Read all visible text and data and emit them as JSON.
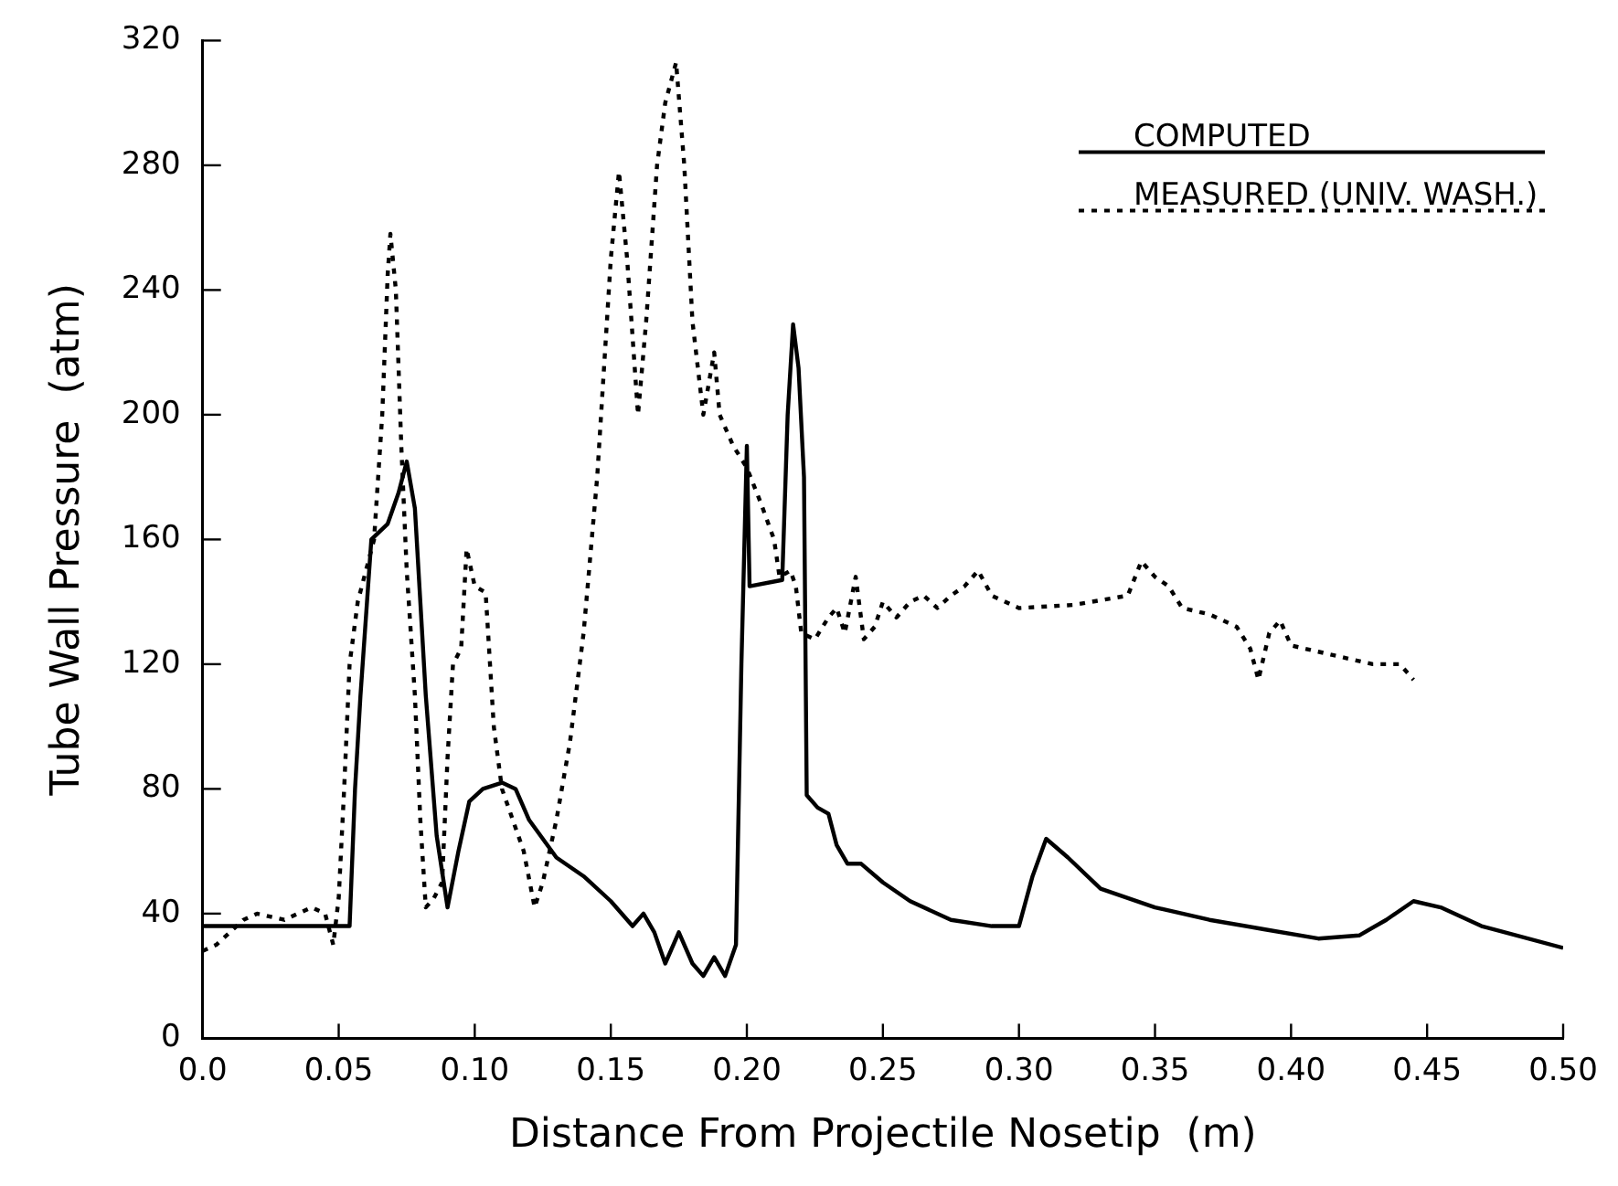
{
  "chart_data": {
    "type": "line",
    "xlabel": "Distance From Projectile Nosetip  (m)",
    "ylabel": "Tube Wall Pressure  (atm)",
    "xlim": [
      0,
      0.5
    ],
    "ylim": [
      0,
      320
    ],
    "xticks": [
      {
        "value": 0,
        "label": "0.0"
      },
      0.05,
      {
        "value": 0.1,
        "label": "0.10"
      },
      0.15,
      {
        "value": 0.2,
        "label": "0.20"
      },
      0.25,
      {
        "value": 0.3,
        "label": "0.30"
      },
      0.35,
      {
        "value": 0.4,
        "label": "0.40"
      },
      0.45,
      {
        "value": 0.5,
        "label": "0.50"
      }
    ],
    "yticks": [
      0,
      40,
      80,
      120,
      160,
      200,
      240,
      280,
      320
    ],
    "grid": false,
    "legend": "top right",
    "marker": "none",
    "series": [
      {
        "name": "COMPUTED",
        "color": "#000000",
        "line_style": "solid",
        "x": [
          0,
          0.054,
          0.056,
          0.058,
          0.062,
          0.068,
          0.072,
          0.075,
          0.078,
          0.082,
          0.086,
          0.09,
          0.094,
          0.098,
          0.103,
          0.11,
          0.115,
          0.12,
          0.13,
          0.14,
          0.15,
          0.158,
          0.162,
          0.166,
          0.17,
          0.175,
          0.18,
          0.184,
          0.188,
          0.192,
          0.196,
          0.198,
          0.2,
          0.201,
          0.213,
          0.215,
          0.217,
          0.219,
          0.221,
          0.222,
          0.226,
          0.23,
          0.233,
          0.237,
          0.242,
          0.25,
          0.26,
          0.275,
          0.29,
          0.3,
          0.305,
          0.31,
          0.318,
          0.33,
          0.35,
          0.37,
          0.39,
          0.41,
          0.425,
          0.435,
          0.445,
          0.455,
          0.47,
          0.5
        ],
        "values": [
          36,
          36,
          80,
          110,
          160,
          165,
          175,
          185,
          170,
          110,
          65,
          42,
          60,
          76,
          80,
          82,
          80,
          70,
          58,
          52,
          44,
          36,
          40,
          34,
          24,
          34,
          24,
          20,
          26,
          20,
          30,
          120,
          190,
          145,
          147,
          200,
          229,
          215,
          180,
          78,
          74,
          72,
          62,
          56,
          56,
          50,
          44,
          38,
          36,
          36,
          52,
          64,
          58,
          48,
          42,
          38,
          35,
          32,
          33,
          38,
          44,
          42,
          36,
          29
        ]
      },
      {
        "name": "MEASURED (UNIV. WASH.)",
        "color": "#000000",
        "line_style": "dotted",
        "x": [
          0,
          0.005,
          0.01,
          0.015,
          0.02,
          0.03,
          0.035,
          0.04,
          0.045,
          0.048,
          0.05,
          0.052,
          0.054,
          0.057,
          0.06,
          0.063,
          0.066,
          0.068,
          0.069,
          0.071,
          0.073,
          0.075,
          0.078,
          0.08,
          0.082,
          0.085,
          0.088,
          0.09,
          0.092,
          0.095,
          0.097,
          0.1,
          0.104,
          0.107,
          0.11,
          0.114,
          0.118,
          0.122,
          0.125,
          0.13,
          0.135,
          0.14,
          0.145,
          0.15,
          0.153,
          0.156,
          0.16,
          0.163,
          0.167,
          0.17,
          0.174,
          0.177,
          0.18,
          0.184,
          0.188,
          0.19,
          0.195,
          0.2,
          0.205,
          0.21,
          0.212,
          0.216,
          0.218,
          0.22,
          0.225,
          0.23,
          0.233,
          0.236,
          0.24,
          0.243,
          0.247,
          0.25,
          0.255,
          0.26,
          0.265,
          0.27,
          0.275,
          0.28,
          0.285,
          0.29,
          0.3,
          0.32,
          0.34,
          0.345,
          0.35,
          0.355,
          0.36,
          0.37,
          0.38,
          0.385,
          0.388,
          0.392,
          0.396,
          0.4,
          0.41,
          0.42,
          0.43,
          0.44,
          0.445
        ],
        "values": [
          28,
          30,
          34,
          38,
          40,
          38,
          40,
          42,
          40,
          30,
          45,
          80,
          120,
          140,
          150,
          160,
          200,
          245,
          258,
          240,
          190,
          150,
          110,
          70,
          42,
          45,
          50,
          90,
          120,
          125,
          157,
          145,
          143,
          100,
          80,
          70,
          60,
          42,
          50,
          70,
          95,
          130,
          180,
          250,
          278,
          250,
          200,
          230,
          280,
          300,
          313,
          280,
          230,
          200,
          220,
          200,
          190,
          183,
          172,
          160,
          148,
          150,
          145,
          130,
          128,
          135,
          138,
          130,
          148,
          128,
          132,
          140,
          135,
          140,
          142,
          138,
          142,
          145,
          150,
          142,
          138,
          139,
          142,
          153,
          148,
          145,
          138,
          136,
          132,
          125,
          115,
          130,
          134,
          126,
          124,
          122,
          120,
          120,
          115
        ]
      }
    ]
  }
}
